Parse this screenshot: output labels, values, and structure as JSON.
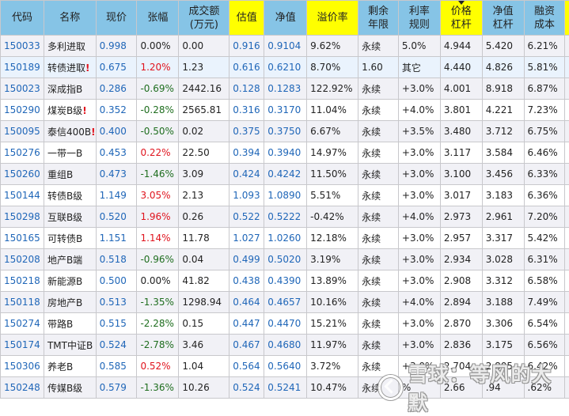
{
  "colors": {
    "header_bg": "#86c4e6",
    "header_highlight": "#ffff00",
    "code_blue": "#1f66b8",
    "up_red": "#e0141e",
    "down_green": "#1f6e1f",
    "alt_row": "#f1f1f6",
    "selected_row": "#eaf3fd"
  },
  "table": {
    "headers": [
      {
        "line1": "代码",
        "line2": ""
      },
      {
        "line1": "名称",
        "line2": ""
      },
      {
        "line1": "现价",
        "line2": ""
      },
      {
        "line1": "张幅",
        "line2": ""
      },
      {
        "line1": "成交额",
        "line2": "(万元)"
      },
      {
        "line1": "估值",
        "line2": ""
      },
      {
        "line1": "净值",
        "line2": ""
      },
      {
        "line1": "溢价率",
        "line2": ""
      },
      {
        "line1": "剩余",
        "line2": "年限"
      },
      {
        "line1": "利率",
        "line2": "规则"
      },
      {
        "line1": "价格",
        "line2": "杠杆"
      },
      {
        "line1": "净值",
        "line2": "杠杆"
      },
      {
        "line1": "融资",
        "line2": "成本"
      }
    ],
    "sorted_column": "价格杠杆",
    "rows": [
      {
        "code": "150033",
        "name": "多利进取",
        "warn": "",
        "price": "0.998",
        "change": "0.00%",
        "dir": "flat",
        "volume": "0.00",
        "est": "0.916",
        "nav": "0.9104",
        "premium": "9.62%",
        "years": "永续",
        "rate_rule": "5.0%",
        "price_lev": "4.944",
        "nav_lev": "5.420",
        "fin_cost": "6.21%"
      },
      {
        "code": "150189",
        "name": "转债进取",
        "warn": "!",
        "price": "0.675",
        "change": "1.20%",
        "dir": "up",
        "volume": "1.23",
        "est": "0.616",
        "nav": "0.6210",
        "premium": "8.70%",
        "years": "1.60",
        "rate_rule": "其它",
        "price_lev": "4.440",
        "nav_lev": "4.826",
        "fin_cost": "5.81%"
      },
      {
        "code": "150023",
        "name": "深成指B",
        "warn": "",
        "price": "0.286",
        "change": "-0.69%",
        "dir": "down",
        "volume": "2442.16",
        "est": "0.128",
        "nav": "0.1283",
        "premium": "122.92%",
        "years": "永续",
        "rate_rule": "+3.0%",
        "price_lev": "4.001",
        "nav_lev": "8.918",
        "fin_cost": "6.87%"
      },
      {
        "code": "150290",
        "name": "煤炭B级",
        "warn": "!",
        "price": "0.352",
        "change": "-0.28%",
        "dir": "down",
        "volume": "2565.81",
        "est": "0.316",
        "nav": "0.3170",
        "premium": "11.04%",
        "years": "永续",
        "rate_rule": "+4.0%",
        "price_lev": "3.801",
        "nav_lev": "4.221",
        "fin_cost": "7.23%"
      },
      {
        "code": "150095",
        "name": "泰信400B",
        "warn": "!",
        "price": "0.400",
        "change": "-0.50%",
        "dir": "down",
        "volume": "0.02",
        "est": "0.375",
        "nav": "0.3750",
        "premium": "6.67%",
        "years": "永续",
        "rate_rule": "+3.5%",
        "price_lev": "3.480",
        "nav_lev": "3.712",
        "fin_cost": "6.75%"
      },
      {
        "code": "150276",
        "name": "一带一B",
        "warn": "",
        "price": "0.453",
        "change": "0.22%",
        "dir": "up",
        "volume": "22.50",
        "est": "0.394",
        "nav": "0.3940",
        "premium": "14.97%",
        "years": "永续",
        "rate_rule": "+3.0%",
        "price_lev": "3.117",
        "nav_lev": "3.584",
        "fin_cost": "6.46%"
      },
      {
        "code": "150260",
        "name": "重组B",
        "warn": "",
        "price": "0.473",
        "change": "-1.46%",
        "dir": "down",
        "volume": "3.09",
        "est": "0.424",
        "nav": "0.4242",
        "premium": "11.50%",
        "years": "永续",
        "rate_rule": "+3.0%",
        "price_lev": "3.100",
        "nav_lev": "3.456",
        "fin_cost": "6.33%"
      },
      {
        "code": "150144",
        "name": "转债B级",
        "warn": "",
        "price": "1.149",
        "change": "3.05%",
        "dir": "up",
        "volume": "2.13",
        "est": "1.093",
        "nav": "1.0890",
        "premium": "5.51%",
        "years": "永续",
        "rate_rule": "+3.0%",
        "price_lev": "3.017",
        "nav_lev": "3.183",
        "fin_cost": "6.36%"
      },
      {
        "code": "150298",
        "name": "互联B级",
        "warn": "",
        "price": "0.520",
        "change": "1.96%",
        "dir": "up",
        "volume": "0.26",
        "est": "0.522",
        "nav": "0.5222",
        "premium": "-0.42%",
        "years": "永续",
        "rate_rule": "+4.0%",
        "price_lev": "2.973",
        "nav_lev": "2.961",
        "fin_cost": "7.20%"
      },
      {
        "code": "150165",
        "name": "可转债B",
        "warn": "",
        "price": "1.151",
        "change": "1.14%",
        "dir": "up",
        "volume": "11.78",
        "est": "1.027",
        "nav": "1.0260",
        "premium": "12.18%",
        "years": "永续",
        "rate_rule": "+3.0%",
        "price_lev": "2.957",
        "nav_lev": "3.317",
        "fin_cost": "5.42%"
      },
      {
        "code": "150208",
        "name": "地产B端",
        "warn": "",
        "price": "0.518",
        "change": "-0.96%",
        "dir": "down",
        "volume": "0.04",
        "est": "0.499",
        "nav": "0.5020",
        "premium": "3.19%",
        "years": "永续",
        "rate_rule": "+3.0%",
        "price_lev": "2.934",
        "nav_lev": "3.028",
        "fin_cost": "6.31%"
      },
      {
        "code": "150218",
        "name": "新能源B",
        "warn": "",
        "price": "0.500",
        "change": "0.00%",
        "dir": "flat",
        "volume": "41.82",
        "est": "0.438",
        "nav": "0.4390",
        "premium": "13.89%",
        "years": "永续",
        "rate_rule": "+3.0%",
        "price_lev": "2.908",
        "nav_lev": "3.312",
        "fin_cost": "6.58%"
      },
      {
        "code": "150118",
        "name": "房地产B",
        "warn": "",
        "price": "0.513",
        "change": "-1.35%",
        "dir": "down",
        "volume": "1298.94",
        "est": "0.464",
        "nav": "0.4657",
        "premium": "10.16%",
        "years": "永续",
        "rate_rule": "+4.0%",
        "price_lev": "2.894",
        "nav_lev": "3.188",
        "fin_cost": "7.49%"
      },
      {
        "code": "150274",
        "name": "带路B",
        "warn": "",
        "price": "0.515",
        "change": "-2.28%",
        "dir": "down",
        "volume": "0.15",
        "est": "0.447",
        "nav": "0.4470",
        "premium": "15.21%",
        "years": "永续",
        "rate_rule": "+3.0%",
        "price_lev": "2.870",
        "nav_lev": "3.306",
        "fin_cost": "6.54%"
      },
      {
        "code": "150174",
        "name": "TMT中证B",
        "warn": "",
        "price": "0.524",
        "change": "-2.78%",
        "dir": "down",
        "volume": "3.46",
        "est": "0.467",
        "nav": "0.4680",
        "premium": "11.97%",
        "years": "永续",
        "rate_rule": "+3.0%",
        "price_lev": "2.836",
        "nav_lev": "3.175",
        "fin_cost": "6.56%"
      },
      {
        "code": "150306",
        "name": "养老B",
        "warn": "",
        "price": "0.585",
        "change": "0.52%",
        "dir": "up",
        "volume": "1.04",
        "est": "0.564",
        "nav": "0.5640",
        "premium": "3.72%",
        "years": "永续",
        "rate_rule": "+3.0%",
        "price_lev": "2.704",
        "nav_lev": "2.805",
        "fin_cost": "6.42%"
      },
      {
        "code": "150248",
        "name": "传媒B级",
        "warn": "",
        "price": "0.579",
        "change": "-1.36%",
        "dir": "down",
        "volume": "10.26",
        "est": "0.524",
        "nav": "0.5241",
        "premium": "10.47%",
        "years": "永续",
        "rate_rule": "%",
        "price_lev": "2.66",
        "nav_lev": ".94",
        "fin_cost": ".62%"
      }
    ]
  },
  "watermark": {
    "text": "雪球：等风的大默",
    "icon": "snowball-logo-icon"
  }
}
